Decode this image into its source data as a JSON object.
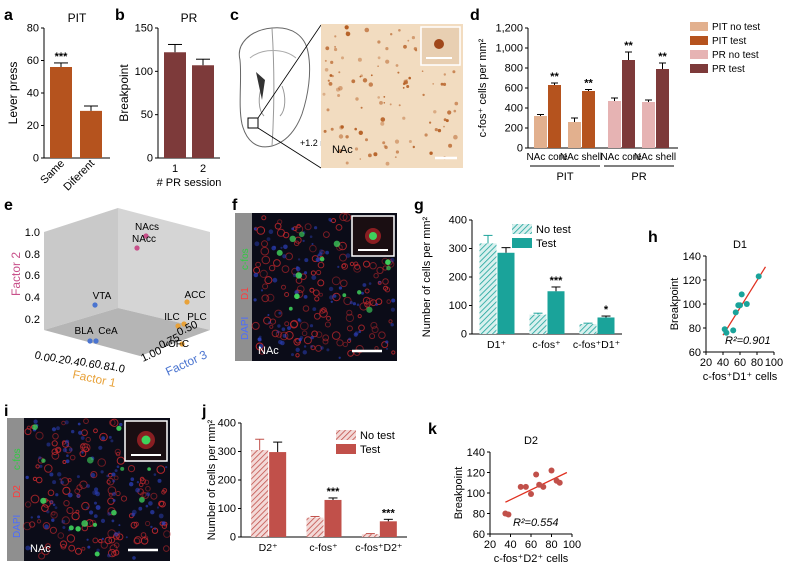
{
  "panels": {
    "a": {
      "letter": "a",
      "title": "PIT",
      "ylabel": "Lever press"
    },
    "b": {
      "letter": "b",
      "title": "PR",
      "ylabel": "Breakpoint",
      "xlabel": "# PR session"
    },
    "c": {
      "letter": "c",
      "coord": "+1.2 mm",
      "region": "NAc"
    },
    "d": {
      "letter": "d",
      "ylabel": "c-fos⁺ cells per mm²",
      "group_labels": [
        "PIT",
        "PR"
      ]
    },
    "e": {
      "letter": "e",
      "axis_labels": {
        "factor1": "Factor 1",
        "factor2": "Factor 2",
        "factor3": "Factor 3"
      }
    },
    "f": {
      "letter": "f",
      "channels": [
        "c-fos",
        "D1",
        "DAPI"
      ],
      "region": "NAc"
    },
    "g": {
      "letter": "g",
      "ylabel": "Number of cells per mm²"
    },
    "h": {
      "letter": "h",
      "title": "D1",
      "ylabel": "Breakpoint",
      "xlabel": "c-fos⁺D1⁺ cells",
      "r2": "R²=0.901"
    },
    "i": {
      "letter": "i",
      "channels": [
        "c-fos",
        "D2",
        "DAPI"
      ],
      "region": "NAc"
    },
    "j": {
      "letter": "j",
      "ylabel": "Number of cells per mm²"
    },
    "k": {
      "letter": "k",
      "title": "D2",
      "ylabel": "Breakpoint",
      "xlabel": "c-fos⁺D2⁺ cells",
      "r2": "R²=0.554"
    }
  },
  "colors": {
    "pit_test": "#b5531e",
    "pit_notest": "#e2b08e",
    "pr_test": "#7d3a3a",
    "pr_notest": "#e6b3b3",
    "teal": "#1aa39a",
    "teal_hatch_bg": "#d8f0ee",
    "red": "#c1504a",
    "red_hatch_bg": "#f3d9d7",
    "fit_line": "#e03020",
    "factor2": "#c8508a",
    "factor1": "#e8a23a",
    "factor3": "#4a74d0",
    "brain_stain": "#f2dcc0"
  },
  "chart_data": [
    {
      "panel": "a",
      "type": "bar",
      "title": "PIT",
      "categories": [
        "Same",
        "Diferent"
      ],
      "values": [
        56,
        29
      ],
      "errors": [
        2.5,
        3
      ],
      "annotations": [
        "***",
        ""
      ],
      "ylabel": "Lever press",
      "ylim": [
        0,
        80
      ],
      "yticks": [
        0,
        20,
        40,
        60,
        80
      ]
    },
    {
      "panel": "b",
      "type": "bar",
      "title": "PR",
      "categories": [
        "1",
        "2"
      ],
      "values": [
        122,
        107
      ],
      "errors": [
        9,
        7
      ],
      "ylabel": "Breakpoint",
      "xlabel": "# PR session",
      "ylim": [
        0,
        150
      ],
      "yticks": [
        0,
        50,
        100,
        150
      ]
    },
    {
      "panel": "d",
      "type": "bar",
      "categories": [
        "NAc core",
        "NAc shell",
        "NAc core",
        "NAc shell"
      ],
      "groups": [
        "PIT",
        "PR"
      ],
      "ylabel": "c-fos⁺ cells per mm²",
      "ylim": [
        0,
        1200
      ],
      "yticks": [
        0,
        200,
        400,
        600,
        800,
        "1,000",
        "1,200"
      ],
      "series": [
        {
          "name": "PIT no test",
          "values": [
            320,
            260,
            null,
            null
          ],
          "errors": [
            15,
            40,
            null,
            null
          ]
        },
        {
          "name": "PIT test",
          "values": [
            630,
            570,
            null,
            null
          ],
          "errors": [
            20,
            15,
            null,
            null
          ]
        },
        {
          "name": "PR no test",
          "values": [
            null,
            null,
            470,
            460
          ],
          "errors": [
            null,
            null,
            30,
            20
          ]
        },
        {
          "name": "PR test",
          "values": [
            null,
            null,
            880,
            790
          ],
          "errors": [
            null,
            null,
            80,
            60
          ]
        }
      ],
      "annotations": [
        "**",
        "**",
        "**",
        "**"
      ]
    },
    {
      "panel": "e",
      "type": "scatter",
      "points": [
        {
          "label": "NAcs",
          "group": "factor2"
        },
        {
          "label": "NAcc",
          "group": "factor2"
        },
        {
          "label": "VTA",
          "group": "factor3"
        },
        {
          "label": "BLA",
          "group": "factor3"
        },
        {
          "label": "CeA",
          "group": "factor3"
        },
        {
          "label": "ACC",
          "group": "factor1"
        },
        {
          "label": "ILC",
          "group": "factor1"
        },
        {
          "label": "PLC",
          "group": "factor1"
        },
        {
          "label": "vOFC",
          "group": "factor1"
        }
      ],
      "ztick_labels": [
        "0.2",
        "0.4",
        "0.6",
        "0.8",
        "1.0"
      ],
      "xtick_labels": [
        "0.0",
        "0.2",
        "0.4",
        "0.6",
        "0.8",
        "1.0"
      ],
      "ytick_labels": [
        "1.00",
        "0.75",
        "0.50"
      ],
      "axis_labels": [
        "Factor 2",
        "Factor 1",
        "Factor 3"
      ]
    },
    {
      "panel": "g",
      "type": "bar",
      "categories": [
        "D1⁺",
        "c-fos⁺",
        "c-fos⁺D1⁺"
      ],
      "ylabel": "Number of cells per mm²",
      "ylim": [
        0,
        400
      ],
      "yticks": [
        0,
        100,
        200,
        300,
        400
      ],
      "series": [
        {
          "name": "No test",
          "values": [
            318,
            68,
            35
          ],
          "errors": [
            28,
            5,
            3
          ]
        },
        {
          "name": "Test",
          "values": [
            285,
            150,
            58
          ],
          "errors": [
            18,
            15,
            5
          ]
        }
      ],
      "annotations": [
        "",
        "***",
        "*"
      ]
    },
    {
      "panel": "h",
      "type": "scatter",
      "title": "D1",
      "xlabel": "c-fos⁺D1⁺ cells",
      "ylabel": "Breakpoint",
      "xlim": [
        20,
        100
      ],
      "ylim": [
        60,
        140
      ],
      "xticks": [
        20,
        40,
        60,
        80,
        100
      ],
      "yticks": [
        60,
        80,
        100,
        120,
        140
      ],
      "x": [
        42,
        44,
        52,
        55,
        58,
        60,
        62,
        68,
        82
      ],
      "y": [
        79,
        76,
        78,
        93,
        99,
        99,
        108,
        100,
        123
      ],
      "fit": {
        "x": [
          40,
          90
        ],
        "y": [
          74,
          131
        ]
      },
      "r2": "R²=0.901"
    },
    {
      "panel": "j",
      "type": "bar",
      "categories": [
        "D2⁺",
        "c-fos⁺",
        "c-fos⁺D2⁺"
      ],
      "ylabel": "Number of cells per mm²",
      "ylim": [
        0,
        400
      ],
      "yticks": [
        0,
        100,
        200,
        300,
        400
      ],
      "series": [
        {
          "name": "No test",
          "values": [
            305,
            68,
            10
          ],
          "errors": [
            38,
            4,
            2
          ]
        },
        {
          "name": "Test",
          "values": [
            298,
            130,
            55
          ],
          "errors": [
            35,
            7,
            7
          ]
        }
      ],
      "annotations": [
        "",
        "***",
        "***"
      ]
    },
    {
      "panel": "k",
      "type": "scatter",
      "title": "D2",
      "xlabel": "c-fos⁺D2⁺ cells",
      "ylabel": "Breakpoint",
      "xlim": [
        20,
        100
      ],
      "ylim": [
        60,
        140
      ],
      "xticks": [
        20,
        40,
        60,
        80,
        100
      ],
      "yticks": [
        60,
        80,
        100,
        120,
        140
      ],
      "x": [
        35,
        38,
        50,
        55,
        60,
        65,
        68,
        72,
        80,
        85,
        88
      ],
      "y": [
        80,
        79,
        106,
        106,
        99,
        118,
        108,
        106,
        122,
        112,
        110
      ],
      "fit": {
        "x": [
          35,
          95
        ],
        "y": [
          91,
          120
        ]
      },
      "r2": "R²=0.554"
    }
  ]
}
